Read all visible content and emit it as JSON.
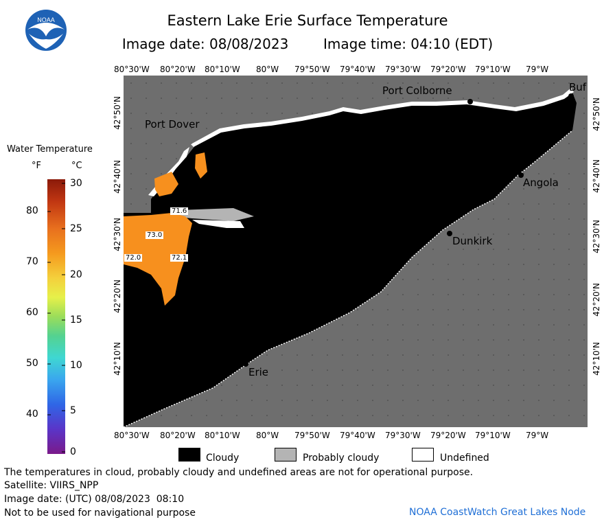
{
  "header": {
    "title": "Eastern Lake Erie Surface Temperature",
    "image_date": "Image date: 08/08/2023",
    "image_time": "Image time: 04:10 (EDT)",
    "logo_text": "NOAA"
  },
  "legend": {
    "title": "Water Temperature",
    "unit_f": "°F",
    "unit_c": "°C",
    "f_ticks": [
      "80",
      "70",
      "60",
      "50",
      "40"
    ],
    "c_ticks": [
      "30",
      "25",
      "20",
      "15",
      "10",
      "5",
      "0"
    ]
  },
  "axes": {
    "lon_ticks": [
      "80°30'W",
      "80°20'W",
      "80°10'W",
      "80°W",
      "79°50'W",
      "79°40'W",
      "79°30'W",
      "79°20'W",
      "79°10'W",
      "79°W"
    ],
    "lat_left": [
      "42°50'N",
      "42°40'N",
      "42°30'N",
      "42°20'N",
      "42°10'N"
    ],
    "lat_right": [
      "42°50'N",
      "42°40'N",
      "42°30'N",
      "42°20'N",
      "42°10'N"
    ]
  },
  "map": {
    "cities": {
      "port_dover": "Port Dover",
      "port_colborne": "Port Colborne",
      "buffalo": "Buf",
      "angola": "Angola",
      "dunkirk": "Dunkirk",
      "erie": "Erie"
    },
    "temp_labels": {
      "t1": "71.6",
      "t2": "73.0",
      "t3": "72.0",
      "t4": "72.1"
    },
    "colors": {
      "cloud": "#000000",
      "land": "#6e6e6e",
      "warm_water": "#f7901e",
      "probably_cloudy": "#b4b4b4",
      "undefined": "#ffffff"
    }
  },
  "key": {
    "cloudy": "Cloudy",
    "probably_cloudy": "Probably cloudy",
    "undefined": "Undefined"
  },
  "footer": {
    "note": "The temperatures in cloud, probably cloudy and undefined areas are not for operational purpose.",
    "satellite": "Satellite: VIIRS_NPP",
    "utc_date": "Image date: (UTC) 08/08/2023  08:10",
    "nav_warning": "Not to be used for navigational purpose",
    "credit": "NOAA CoastWatch Great Lakes Node"
  }
}
